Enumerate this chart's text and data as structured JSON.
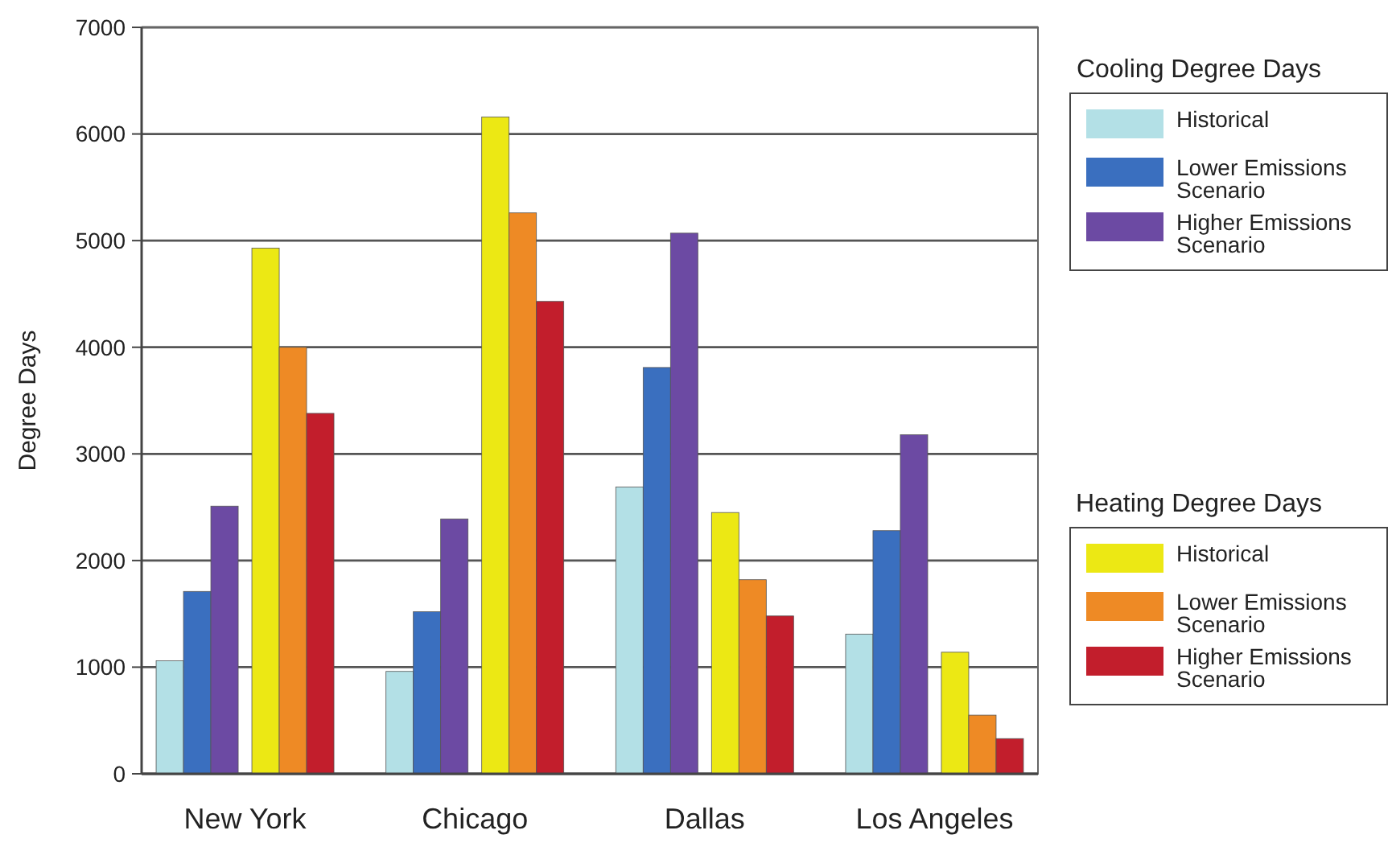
{
  "chart_data": {
    "type": "bar",
    "ylabel": "Degree Days",
    "categories": [
      "New York",
      "Chicago",
      "Dallas",
      "Los Angeles"
    ],
    "series": [
      {
        "name": "Historical",
        "color": "#b3e0e6",
        "values": [
          1060,
          960,
          2690,
          1310
        ]
      },
      {
        "name": "Lower Emissions Scenario",
        "color": "#3a6fbf",
        "values": [
          1710,
          1520,
          3810,
          2280
        ]
      },
      {
        "name": "Higher Emissions Scenario",
        "color": "#6c4aa3",
        "values": [
          2510,
          2390,
          5070,
          3180
        ]
      },
      {
        "name": "Historical",
        "color": "#ece814",
        "values": [
          4930,
          6160,
          2450,
          1140
        ]
      },
      {
        "name": "Lower Emissions Scenario",
        "color": "#ee8a25",
        "values": [
          4000,
          5260,
          1820,
          550
        ]
      },
      {
        "name": "Higher Emissions Scenario",
        "color": "#c21e2c",
        "values": [
          3380,
          4430,
          1480,
          330
        ]
      }
    ],
    "annotations": [
      "Cooling Degree Days",
      "Heating Degree Days"
    ],
    "ylim": [
      0,
      7000
    ],
    "yticks": [
      0,
      1000,
      2000,
      3000,
      4000,
      5000,
      6000,
      7000
    ],
    "grid": "y",
    "legend": "right"
  }
}
